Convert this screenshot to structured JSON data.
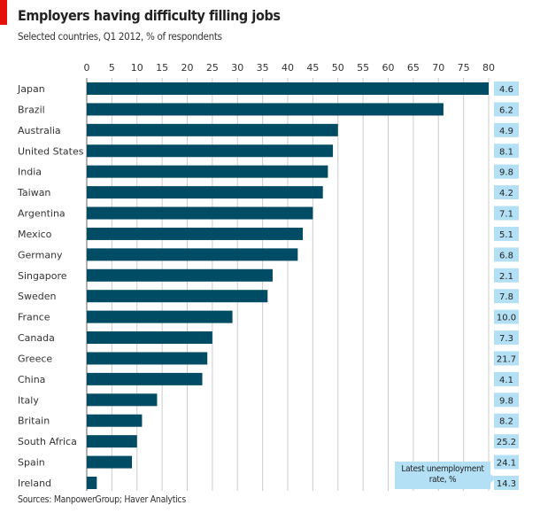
{
  "chart_data": {
    "type": "bar",
    "orientation": "horizontal",
    "title": "Employers having difficulty filling jobs",
    "subtitle": "Selected countries, Q1 2012, % of respondents",
    "xlim": [
      0,
      80
    ],
    "xticks": [
      0,
      5,
      10,
      15,
      20,
      25,
      30,
      35,
      40,
      45,
      50,
      55,
      60,
      65,
      70,
      75,
      80
    ],
    "grid": true,
    "categories": [
      "Japan",
      "Brazil",
      "Australia",
      "United States",
      "India",
      "Taiwan",
      "Argentina",
      "Mexico",
      "Germany",
      "Singapore",
      "Sweden",
      "France",
      "Canada",
      "Greece",
      "China",
      "Italy",
      "Britain",
      "South Africa",
      "Spain",
      "Ireland"
    ],
    "values": [
      80,
      71,
      50,
      49,
      48,
      47,
      45,
      43,
      42,
      37,
      36,
      29,
      25,
      24,
      23,
      14,
      11,
      10,
      9,
      2
    ],
    "unemployment_label": "Latest unemployment rate, %",
    "unemployment": [
      "4.6",
      "6.2",
      "4.9",
      "8.1",
      "9.8",
      "4.2",
      "7.1",
      "5.1",
      "6.8",
      "2.1",
      "7.8",
      "10.0",
      "7.3",
      "21.7",
      "4.1",
      "9.8",
      "8.2",
      "25.2",
      "24.1",
      "14.3"
    ],
    "bar_color": "#004c64",
    "box_color": "#b3e0f5",
    "source": "Sources: ManpowerGroup; Haver Analytics"
  }
}
